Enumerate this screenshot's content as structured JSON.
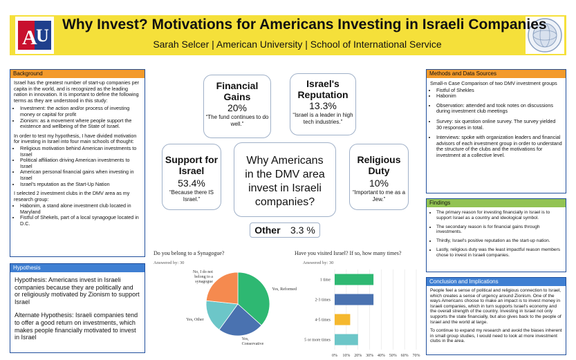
{
  "header": {
    "title": "Why Invest? Motivations for Americans Investing in Israeli Companies",
    "subtitle": "Sarah Selcer | American University | School of International Service",
    "logo_text": "AU",
    "color": "#f5e03a"
  },
  "background": {
    "heading": "Background",
    "intro": "Israel has the greatest number of start-up companies per capita in the world, and is recognized as the leading nation in innovation. It is important to define the following terms as they are understood in this study:",
    "terms": [
      "Investment:  the action and/or process of investing money or capital for profit",
      "Zionism: as a movement where people support the existence and wellbeing of the State of Israel."
    ],
    "hyp_intro": "In order to test my hypothesis, I have divided motivation for investing in Israel into four main schools of thought:",
    "schools": [
      "Religious motivation behind American investments to Israel",
      "Political affiliation driving American investments to Israel",
      "American personal financial gains when investing in Israel",
      "Israel's reputation as the Start-Up Nation"
    ],
    "clubs_intro": "I selected 2 investment clubs in the DMV area as my research group:",
    "clubs": [
      "Habonim, a stand alone investment club located in Maryland",
      "Fistful of Shekels, part of a local synagogue located in D.C."
    ]
  },
  "hypothesis": {
    "heading": "Hypothesis",
    "main": "Hypothesis: Americans invest in Israeli companies because they are politically and or religiously motivated by Zionism to support Israel",
    "alt": "Alternate Hypothesis: Israeli companies tend to offer a good return on investments, which makes people financially motivated to invest in Israel"
  },
  "center": {
    "question": "Why Americans in the DMV area invest in Israeli companies?",
    "financial": {
      "title": "Financial Gains",
      "pct": "20%",
      "quote": "“The fund continues to do well.”"
    },
    "reputation": {
      "title": "Israel's Reputation",
      "pct": "13.3%",
      "quote": "“Israel is a leader in high tech industries.”"
    },
    "support": {
      "title": "Support for Israel",
      "pct": "53.4%",
      "quote": "“Because there IS Israel.”"
    },
    "religious": {
      "title": "Religious Duty",
      "pct": "10%",
      "quote": "“Important to me as a Jew.”"
    },
    "other": {
      "label": "Other",
      "pct": "3.3 %"
    }
  },
  "methods": {
    "heading": "Methods and Data Sources",
    "intro": "Small-n Case Comparison of two DMV investment groups",
    "groups": [
      "Fistful of Shekles",
      "Habonim"
    ],
    "items": [
      "Observation: attended and took notes on discussions during investment club meetings",
      "Survey: six question online survey. The survey yielded 30 responses in total.",
      "Interviews: spoke with organization leaders and financial advisors of each investment group in order to understand the structure of the clubs and the motivations for investment at a collective level."
    ]
  },
  "findings": {
    "heading": "Findings",
    "items": [
      "The primary reason for investing financially in Israel is to support Israel as a country and ideological symbol.",
      "The secondary reason is for financial gains through investments.",
      "Thirdly, Israel's positive reputation as the start-up nation.",
      "Lastly, religious duty was the least impactful reason members chose to invest in Israeli companies."
    ]
  },
  "conclusion": {
    "heading": "Conclusion and Implications",
    "p1": "People feel a sense of political and religious connection to Israel, which creates a sense of urgency around Zionism. One of the ways Americans choose to make an impact is to invest money in Israeli companies, which in turn supports Israel's economy and the overall strength of the country. Investing in Israel not only supports the state financially, but also gives back to the people of Israel and the world at large.",
    "p2": "To continue to expand my research and avoid the biases inherent in small group studies, I would need to look at more investment clubs in the area."
  },
  "chart_data": [
    {
      "type": "pie",
      "title": "Do you belong to a Synagogue?",
      "subtitle": "Answered by: 30",
      "categories": [
        "Yes, Reformed",
        "Yes, Conservative",
        "Yes, Other",
        "No, I do not belong to a synagogue"
      ],
      "values": [
        36.7,
        23.3,
        16.7,
        23.3
      ],
      "colors": [
        "#2eb872",
        "#4a72b0",
        "#6cc6c8",
        "#f58a4f"
      ]
    },
    {
      "type": "bar",
      "orientation": "horizontal",
      "title": "Have you visited Israel? If so, how many times?",
      "subtitle": "Answered by: 30",
      "categories": [
        "1 time",
        "2-3 times",
        "4-5 times",
        "5 or more times"
      ],
      "values": [
        33.3,
        33.3,
        13.3,
        20
      ],
      "colors": [
        "#2eb872",
        "#4a72b0",
        "#f5b82e",
        "#6cc6c8"
      ],
      "xticks": [
        "0%",
        "10%",
        "20%",
        "30%",
        "40%",
        "50%",
        "60%",
        "70%"
      ],
      "xlim": [
        0,
        70
      ]
    }
  ]
}
